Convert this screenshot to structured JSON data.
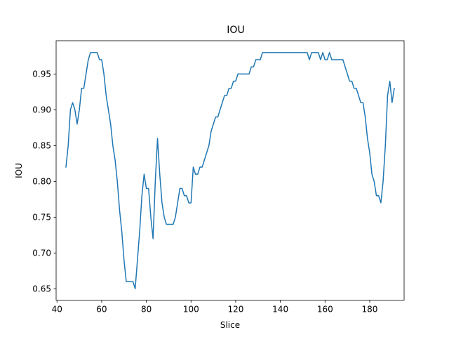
{
  "chart_data": {
    "type": "line",
    "title": "IOU",
    "xlabel": "Slice",
    "ylabel": "IOU",
    "xlim": [
      39.6,
      195.4
    ],
    "ylim": [
      0.634,
      0.9965
    ],
    "xticks": [
      40,
      60,
      80,
      100,
      120,
      140,
      160,
      180
    ],
    "yticks": [
      0.65,
      0.7,
      0.75,
      0.8,
      0.85,
      0.9,
      0.95
    ],
    "ytick_labels": [
      "0.65",
      "0.70",
      "0.75",
      "0.80",
      "0.85",
      "0.90",
      "0.95"
    ],
    "grid": false,
    "legend": "none",
    "colors": {
      "line": "#1f77b4",
      "axis": "#000000",
      "background": "#ffffff"
    },
    "series": [
      {
        "x": [
          44,
          45,
          46,
          47,
          48,
          49,
          50,
          51,
          52,
          53,
          54,
          55,
          56,
          57,
          58,
          59,
          60,
          61,
          62,
          63,
          64,
          65,
          66,
          67,
          68,
          69,
          70,
          71,
          72,
          73,
          74,
          75,
          76,
          77,
          78,
          79,
          80,
          81,
          82,
          83,
          84,
          85,
          86,
          87,
          88,
          89,
          90,
          91,
          92,
          93,
          94,
          95,
          96,
          97,
          98,
          99,
          100,
          101,
          102,
          103,
          104,
          105,
          106,
          107,
          108,
          109,
          110,
          111,
          112,
          113,
          114,
          115,
          116,
          117,
          118,
          119,
          120,
          121,
          122,
          123,
          124,
          125,
          126,
          127,
          128,
          129,
          130,
          131,
          132,
          133,
          134,
          135,
          136,
          137,
          138,
          139,
          140,
          141,
          142,
          143,
          144,
          145,
          146,
          147,
          148,
          149,
          150,
          151,
          152,
          153,
          154,
          155,
          156,
          157,
          158,
          159,
          160,
          161,
          162,
          163,
          164,
          165,
          166,
          167,
          168,
          169,
          170,
          171,
          172,
          173,
          174,
          175,
          176,
          177,
          178,
          179,
          180,
          181,
          182,
          183,
          184,
          185,
          186,
          187,
          188,
          189,
          190,
          191
        ],
        "values": [
          0.82,
          0.85,
          0.9,
          0.91,
          0.9,
          0.88,
          0.9,
          0.93,
          0.93,
          0.95,
          0.97,
          0.98,
          0.98,
          0.98,
          0.98,
          0.97,
          0.97,
          0.95,
          0.92,
          0.9,
          0.88,
          0.85,
          0.83,
          0.8,
          0.76,
          0.73,
          0.69,
          0.66,
          0.66,
          0.66,
          0.66,
          0.65,
          0.69,
          0.73,
          0.78,
          0.81,
          0.79,
          0.79,
          0.75,
          0.72,
          0.8,
          0.86,
          0.81,
          0.77,
          0.75,
          0.74,
          0.74,
          0.74,
          0.74,
          0.75,
          0.77,
          0.79,
          0.79,
          0.78,
          0.78,
          0.77,
          0.77,
          0.82,
          0.81,
          0.81,
          0.82,
          0.82,
          0.83,
          0.84,
          0.85,
          0.87,
          0.88,
          0.89,
          0.89,
          0.9,
          0.91,
          0.92,
          0.92,
          0.93,
          0.93,
          0.94,
          0.94,
          0.95,
          0.95,
          0.95,
          0.95,
          0.95,
          0.95,
          0.96,
          0.96,
          0.97,
          0.97,
          0.97,
          0.98,
          0.98,
          0.98,
          0.98,
          0.98,
          0.98,
          0.98,
          0.98,
          0.98,
          0.98,
          0.98,
          0.98,
          0.98,
          0.98,
          0.98,
          0.98,
          0.98,
          0.98,
          0.98,
          0.98,
          0.98,
          0.97,
          0.98,
          0.98,
          0.98,
          0.98,
          0.97,
          0.98,
          0.97,
          0.97,
          0.98,
          0.97,
          0.97,
          0.97,
          0.97,
          0.97,
          0.97,
          0.96,
          0.95,
          0.94,
          0.94,
          0.93,
          0.93,
          0.92,
          0.91,
          0.91,
          0.89,
          0.86,
          0.84,
          0.81,
          0.8,
          0.78,
          0.78,
          0.77,
          0.8,
          0.85,
          0.92,
          0.94,
          0.91,
          0.93
        ]
      }
    ]
  }
}
